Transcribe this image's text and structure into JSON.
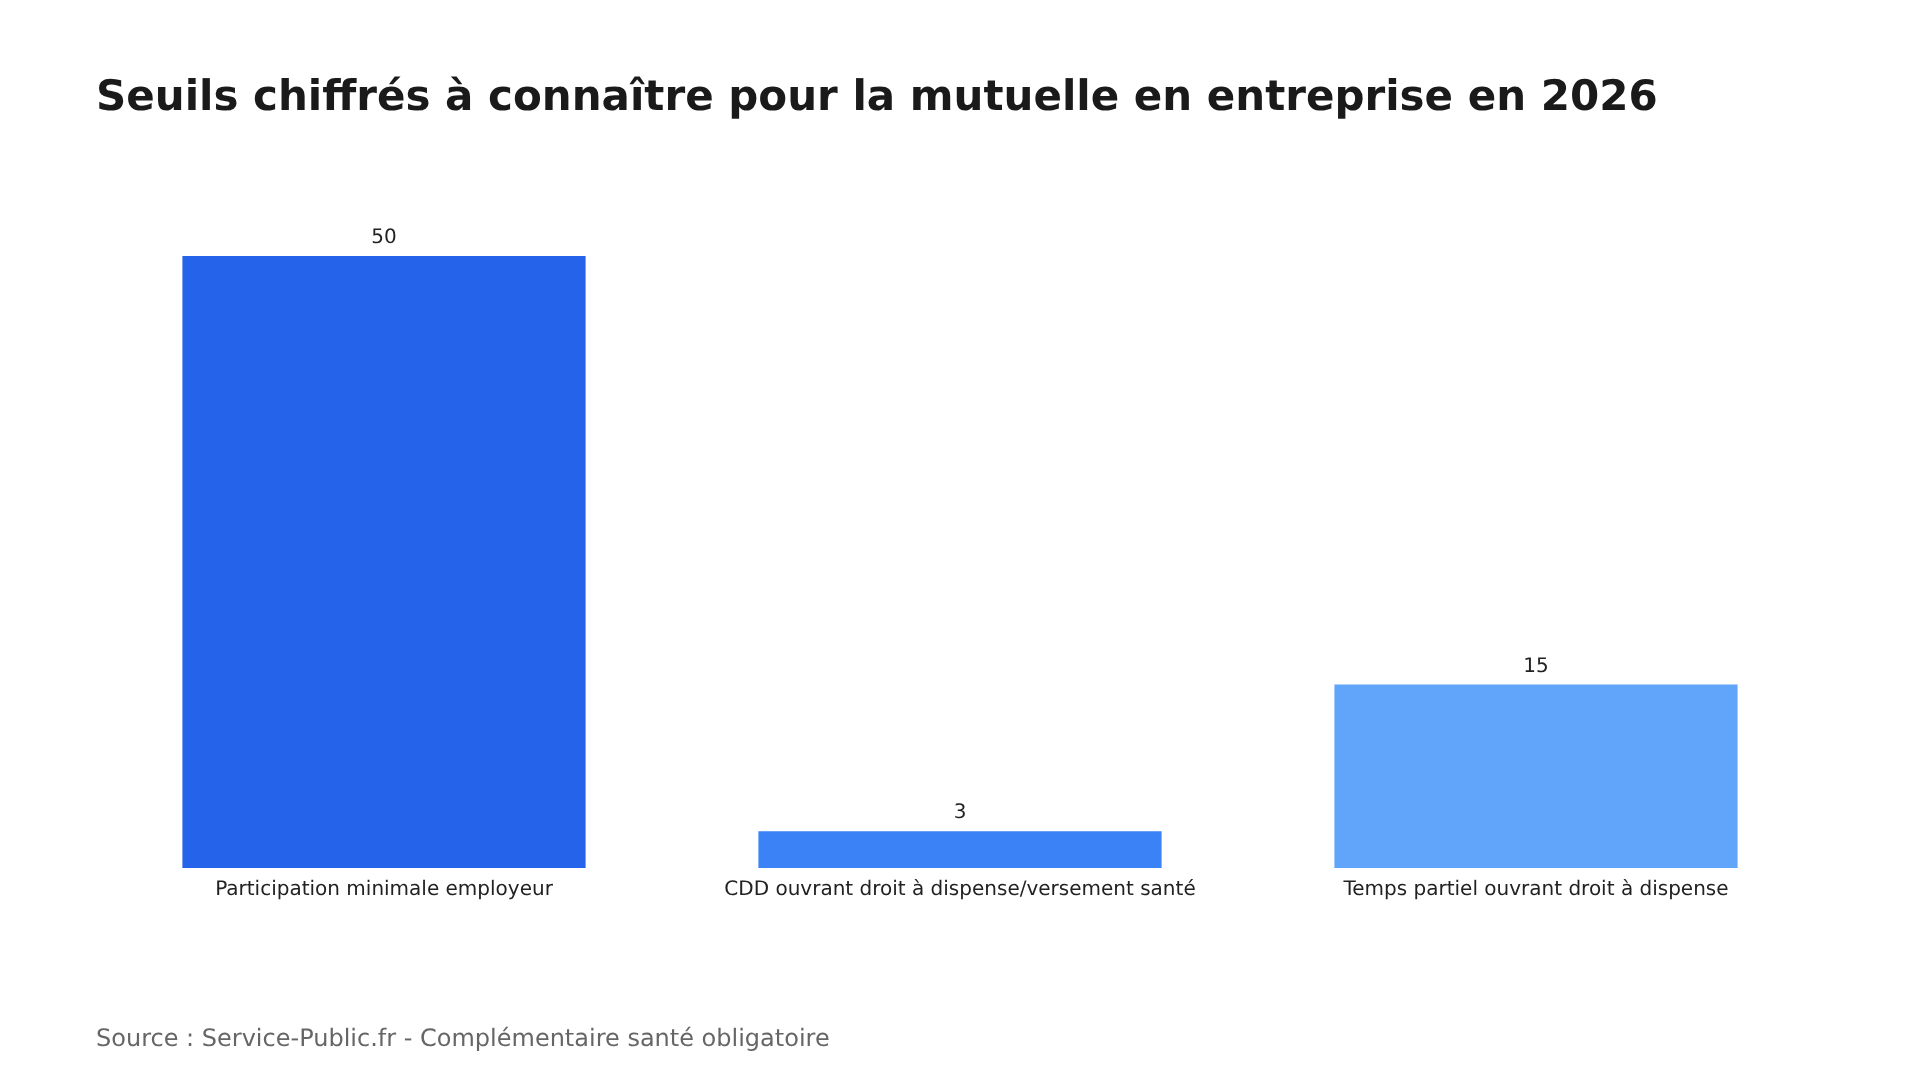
{
  "chart_data": {
    "type": "bar",
    "title": "Seuils chiffrés à connaître pour la mutuelle en entreprise en 2026",
    "categories": [
      "Participation minimale employeur",
      "CDD ouvrant droit à dispense/versement santé",
      "Temps partiel ouvrant droit à dispense"
    ],
    "values": [
      50,
      3,
      15
    ],
    "colors": [
      "#2563eb",
      "#3b82f6",
      "#60a5fa"
    ],
    "data_labels": true,
    "grid": false,
    "legend": false,
    "tick_labels": "x",
    "annotations": [
      "Source : Service-Public.fr - Complémentaire santé obligatoire"
    ]
  }
}
